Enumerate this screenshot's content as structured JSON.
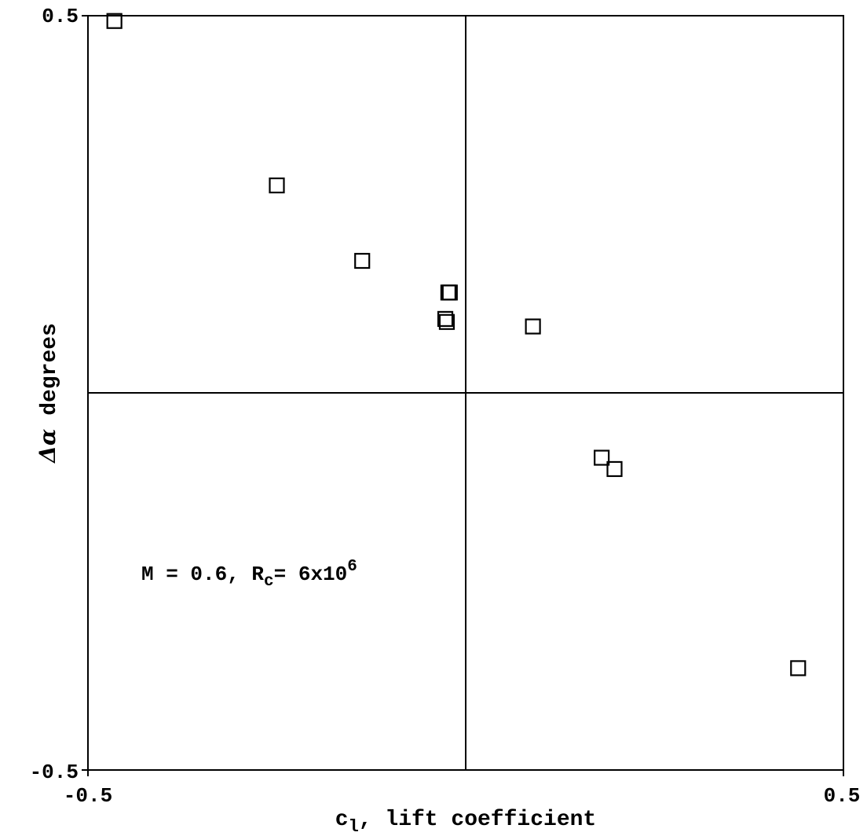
{
  "chart_data": {
    "type": "scatter",
    "title": "",
    "xlim": [
      -0.5,
      0.5
    ],
    "ylim": [
      -0.5,
      0.5
    ],
    "x_ticks": [
      -0.5,
      0.5
    ],
    "y_ticks": [
      -0.5,
      0.5
    ],
    "x_tick_labels": [
      "-0.5",
      "0.5"
    ],
    "y_tick_labels": [
      "-0.5",
      "0.5"
    ],
    "xlabel": {
      "main": "c",
      "sub": "l",
      "rest": ", lift coefficient"
    },
    "ylabel": {
      "delta": "Δ",
      "alpha": "α",
      "rest": " degrees"
    },
    "grid": false,
    "zero_lines": true,
    "marker": "open-square",
    "annotation": {
      "prefix": "M = 0.6, R",
      "sub": "c",
      "mid": "= 6x10",
      "sup": "6"
    },
    "series": [
      {
        "points": [
          {
            "x": -0.465,
            "y": 0.493
          },
          {
            "x": -0.25,
            "y": 0.275
          },
          {
            "x": -0.137,
            "y": 0.175
          },
          {
            "x": -0.023,
            "y": 0.133
          },
          {
            "x": -0.021,
            "y": 0.133
          },
          {
            "x": -0.027,
            "y": 0.098
          },
          {
            "x": -0.025,
            "y": 0.094
          },
          {
            "x": 0.089,
            "y": 0.088
          },
          {
            "x": 0.18,
            "y": -0.086
          },
          {
            "x": 0.197,
            "y": -0.101
          },
          {
            "x": 0.44,
            "y": -0.365
          }
        ]
      }
    ]
  }
}
